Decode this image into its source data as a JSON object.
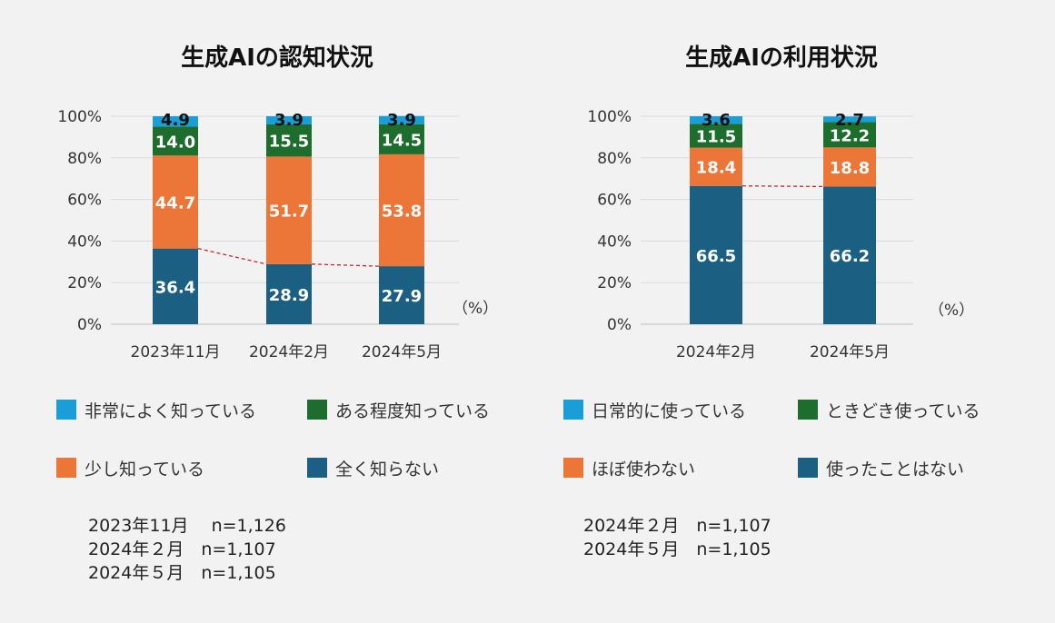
{
  "chart_data": [
    {
      "type": "bar",
      "stacked": true,
      "title": "生成AIの認知状況",
      "categories": [
        "2023年11月",
        "2024年2月",
        "2024年5月"
      ],
      "ylim": [
        0,
        100
      ],
      "yticks": [
        "0%",
        "20%",
        "40%",
        "60%",
        "80%",
        "100%"
      ],
      "unit": "（%）",
      "series": [
        {
          "name": "全く知らない",
          "color": "#1b5f82",
          "values": [
            36.4,
            28.9,
            27.9
          ]
        },
        {
          "name": "少し知っている",
          "color": "#ec7637",
          "values": [
            44.7,
            51.7,
            53.8
          ]
        },
        {
          "name": "ある程度知っている",
          "color": "#1d6e2c",
          "values": [
            14.0,
            15.5,
            14.5
          ]
        },
        {
          "name": "非常によく知っている",
          "color": "#1a9ed7",
          "values": [
            4.9,
            3.9,
            3.9
          ]
        }
      ],
      "series_labels": [
        [
          "36.4",
          "28.9",
          "27.9"
        ],
        [
          "44.7",
          "51.7",
          "53.8"
        ],
        [
          "14.0",
          "15.5",
          "14.5"
        ],
        [
          "4.9",
          "3.9",
          "3.9"
        ]
      ],
      "legend_order": [
        "非常によく知っている",
        "ある程度知っている",
        "少し知っている",
        "全く知らない"
      ],
      "notes": [
        "2023年11月　 n=1,126",
        "2024年２月　n=1,107",
        "2024年５月　n=1,105"
      ]
    },
    {
      "type": "bar",
      "stacked": true,
      "title": "生成AIの利用状況",
      "categories": [
        "2024年2月",
        "2024年5月"
      ],
      "ylim": [
        0,
        100
      ],
      "yticks": [
        "0%",
        "20%",
        "40%",
        "60%",
        "80%",
        "100%"
      ],
      "unit": "（%）",
      "series": [
        {
          "name": "使ったことはない",
          "color": "#1b5f82",
          "values": [
            66.5,
            66.2
          ]
        },
        {
          "name": "ほぼ使わない",
          "color": "#ec7637",
          "values": [
            18.4,
            18.8
          ]
        },
        {
          "name": "ときどき使っている",
          "color": "#1d6e2c",
          "values": [
            11.5,
            12.2
          ]
        },
        {
          "name": "日常的に使っている",
          "color": "#1a9ed7",
          "values": [
            3.6,
            2.7
          ]
        }
      ],
      "series_labels": [
        [
          "66.5",
          "66.2"
        ],
        [
          "18.4",
          "18.8"
        ],
        [
          "11.5",
          "12.2"
        ],
        [
          "3.6",
          "2.7"
        ]
      ],
      "legend_order": [
        "日常的に使っている",
        "ときどき使っている",
        "ほぼ使わない",
        "使ったことはない"
      ],
      "notes": [
        "2024年２月　n=1,107",
        "2024年５月　n=1,105"
      ]
    }
  ]
}
